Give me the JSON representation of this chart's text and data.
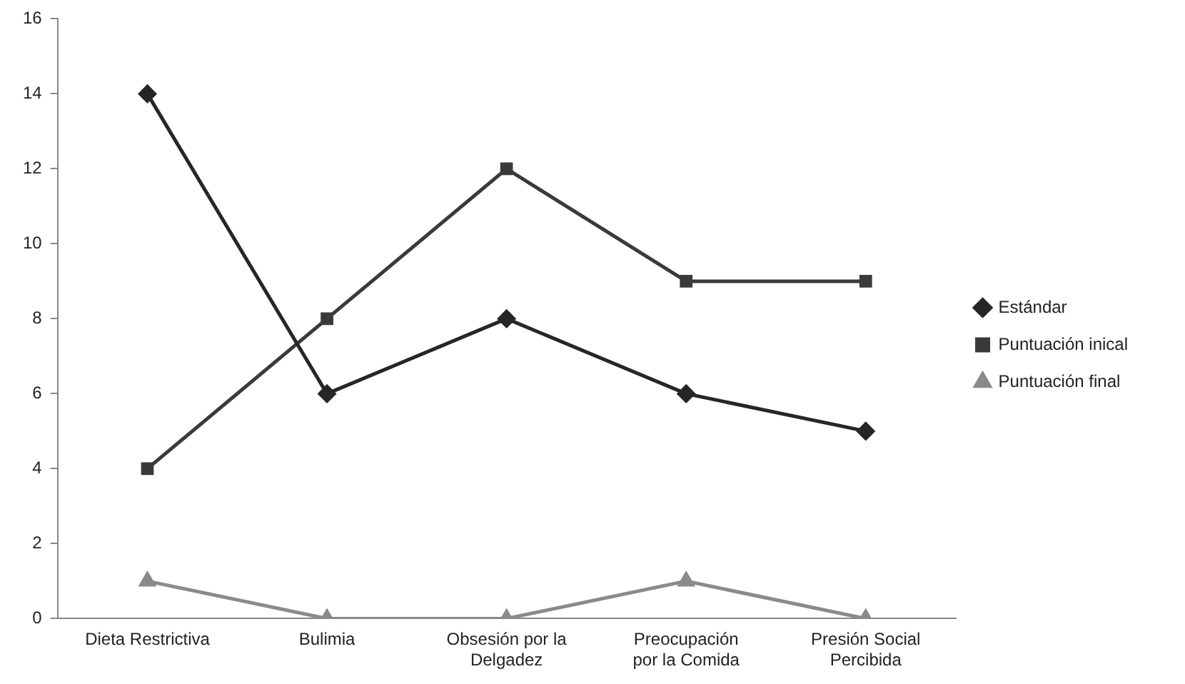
{
  "chart_data": {
    "type": "line",
    "categories": [
      "Dieta Restrictiva",
      "Bulimia",
      "Obsesión por la\nDelgadez",
      "Preocupación\npor la Comida",
      "Presión Social\nPercibida"
    ],
    "series": [
      {
        "name": "Estándar",
        "color": "#262626",
        "marker": "diamond",
        "values": [
          14,
          6,
          8,
          6,
          5
        ]
      },
      {
        "name": "Puntuación inical",
        "color": "#3a3a3a",
        "marker": "square",
        "values": [
          4,
          8,
          12,
          9,
          9
        ]
      },
      {
        "name": "Puntuación final",
        "color": "#8a8a8a",
        "marker": "triangle",
        "values": [
          1,
          0,
          0,
          1,
          0
        ]
      }
    ],
    "ylim": [
      0,
      16
    ],
    "yticks": [
      0,
      2,
      4,
      6,
      8,
      10,
      12,
      14,
      16
    ],
    "grid": false,
    "legend": "right",
    "line_style": "solid"
  }
}
